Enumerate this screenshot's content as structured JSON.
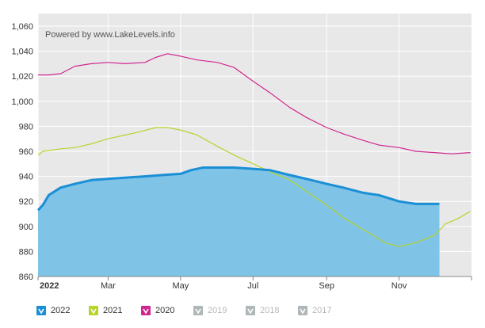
{
  "credit": "Powered by www.LakeLevels.info",
  "colors": {
    "2022": "#1b8fd6",
    "2022_fill": "#7fc3e6",
    "2021": "#b5d52b",
    "2020": "#d1268f",
    "inactive": "#b0b7b9",
    "plot_bg": "#e8e8e8"
  },
  "legend": [
    {
      "label": "2022",
      "color": "#1b8fd6",
      "active": true
    },
    {
      "label": "2021",
      "color": "#b5d52b",
      "active": true
    },
    {
      "label": "2020",
      "color": "#d1268f",
      "active": true
    },
    {
      "label": "2019",
      "color": "#b0b7b9",
      "active": false
    },
    {
      "label": "2018",
      "color": "#b0b7b9",
      "active": false
    },
    {
      "label": "2017",
      "color": "#b0b7b9",
      "active": false
    }
  ],
  "chart_data": {
    "type": "area",
    "title": "",
    "xlabel": "",
    "ylabel": "",
    "ylim": [
      860,
      1060
    ],
    "yticks": [
      "1,060",
      "1,040",
      "1,020",
      "1,000",
      "980",
      "960",
      "940",
      "920",
      "900",
      "880",
      "860"
    ],
    "xtick_labels": [
      "2022",
      "Mar",
      "May",
      "Jul",
      "Sep",
      "Nov"
    ],
    "x_days_domain": [
      0,
      365
    ],
    "grid": true,
    "legend_position": "bottom",
    "series": [
      {
        "name": "2022",
        "fill": true,
        "x": [
          "2022-01-01",
          "2022-01-05",
          "2022-01-10",
          "2022-01-20",
          "2022-02-01",
          "2022-02-15",
          "2022-03-01",
          "2022-03-15",
          "2022-04-01",
          "2022-04-15",
          "2022-05-01",
          "2022-05-10",
          "2022-05-20",
          "2022-06-01",
          "2022-06-15",
          "2022-07-01",
          "2022-07-15",
          "2022-08-01",
          "2022-08-15",
          "2022-09-01",
          "2022-09-15",
          "2022-10-01",
          "2022-10-15",
          "2022-11-01",
          "2022-11-15",
          "2022-12-01",
          "2022-12-05"
        ],
        "y": [
          913,
          917,
          925,
          931,
          934,
          937,
          938,
          939,
          940,
          941,
          942,
          945,
          947,
          947,
          947,
          946,
          945,
          941,
          938,
          934,
          931,
          927,
          925,
          920,
          918,
          918,
          918
        ]
      },
      {
        "name": "2021",
        "fill": false,
        "x": [
          "2022-01-01",
          "2022-01-05",
          "2022-01-20",
          "2022-02-01",
          "2022-02-15",
          "2022-03-01",
          "2022-03-15",
          "2022-03-25",
          "2022-04-10",
          "2022-04-20",
          "2022-05-01",
          "2022-05-15",
          "2022-06-01",
          "2022-06-15",
          "2022-07-01",
          "2022-07-15",
          "2022-08-01",
          "2022-08-15",
          "2022-09-01",
          "2022-09-15",
          "2022-10-01",
          "2022-10-10",
          "2022-10-15",
          "2022-10-20",
          "2022-11-01",
          "2022-11-15",
          "2022-12-01",
          "2022-12-10",
          "2022-12-20",
          "2022-12-31"
        ],
        "y": [
          957,
          960,
          962,
          963,
          966,
          970,
          973,
          975,
          979,
          979,
          977,
          973,
          964,
          957,
          950,
          944,
          937,
          928,
          917,
          907,
          898,
          893,
          890,
          887,
          884,
          887,
          893,
          902,
          906,
          912
        ]
      },
      {
        "name": "2020",
        "fill": false,
        "x": [
          "2022-01-01",
          "2022-01-10",
          "2022-01-20",
          "2022-02-01",
          "2022-02-15",
          "2022-03-01",
          "2022-03-15",
          "2022-04-01",
          "2022-04-10",
          "2022-04-20",
          "2022-05-01",
          "2022-05-15",
          "2022-06-01",
          "2022-06-15",
          "2022-07-01",
          "2022-07-15",
          "2022-08-01",
          "2022-08-15",
          "2022-09-01",
          "2022-09-15",
          "2022-10-01",
          "2022-10-15",
          "2022-11-01",
          "2022-11-15",
          "2022-12-01",
          "2022-12-15",
          "2022-12-31"
        ],
        "y": [
          1021,
          1021,
          1022,
          1028,
          1030,
          1031,
          1030,
          1031,
          1035,
          1038,
          1036,
          1033,
          1031,
          1027,
          1016,
          1007,
          995,
          987,
          979,
          974,
          969,
          965,
          963,
          960,
          959,
          958,
          959
        ]
      }
    ]
  }
}
